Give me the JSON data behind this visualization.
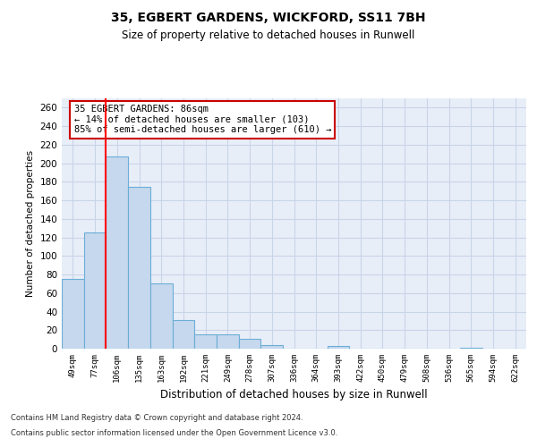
{
  "title": "35, EGBERT GARDENS, WICKFORD, SS11 7BH",
  "subtitle": "Size of property relative to detached houses in Runwell",
  "xlabel": "Distribution of detached houses by size in Runwell",
  "ylabel": "Number of detached properties",
  "categories": [
    "49sqm",
    "77sqm",
    "106sqm",
    "135sqm",
    "163sqm",
    "192sqm",
    "221sqm",
    "249sqm",
    "278sqm",
    "307sqm",
    "336sqm",
    "364sqm",
    "393sqm",
    "422sqm",
    "450sqm",
    "479sqm",
    "508sqm",
    "536sqm",
    "565sqm",
    "594sqm",
    "622sqm"
  ],
  "values": [
    75,
    125,
    207,
    175,
    70,
    31,
    15,
    15,
    11,
    4,
    0,
    0,
    3,
    0,
    0,
    0,
    0,
    0,
    1,
    0,
    0
  ],
  "bar_color": "#c5d8ee",
  "bar_edge_color": "#6baed6",
  "red_line_x": 1.5,
  "annotation_text": "35 EGBERT GARDENS: 86sqm\n← 14% of detached houses are smaller (103)\n85% of semi-detached houses are larger (610) →",
  "annotation_box_color": "#ffffff",
  "annotation_box_edge": "#cc0000",
  "grid_color": "#c8d4e8",
  "background_color": "#e8eef8",
  "footer_line1": "Contains HM Land Registry data © Crown copyright and database right 2024.",
  "footer_line2": "Contains public sector information licensed under the Open Government Licence v3.0.",
  "ylim": [
    0,
    270
  ],
  "yticks": [
    0,
    20,
    40,
    60,
    80,
    100,
    120,
    140,
    160,
    180,
    200,
    220,
    240,
    260
  ]
}
